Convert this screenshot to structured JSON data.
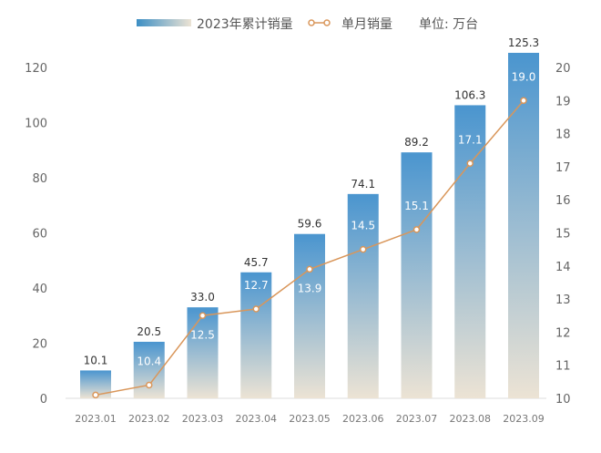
{
  "chart_data": {
    "type": "bar+line",
    "legend": {
      "bar_label": "2023年累计销量",
      "line_label": "单月销量",
      "unit_label": "单位: 万台",
      "placement": "top"
    },
    "categories": [
      "2023.01",
      "2023.02",
      "2023.03",
      "2023.04",
      "2023.05",
      "2023.06",
      "2023.07",
      "2023.08",
      "2023.09"
    ],
    "series": [
      {
        "name": "2023年累计销量",
        "type": "bar",
        "axis": "left",
        "values": [
          10.1,
          20.5,
          33.0,
          45.7,
          59.6,
          74.1,
          89.2,
          106.3,
          125.3
        ],
        "labels": [
          "10.1",
          "20.5",
          "33.0",
          "45.7",
          "59.6",
          "74.1",
          "89.2",
          "106.3",
          "125.3"
        ]
      },
      {
        "name": "单月销量",
        "type": "line",
        "axis": "right",
        "values": [
          10.1,
          10.4,
          12.5,
          12.7,
          13.9,
          14.5,
          15.1,
          17.1,
          19.0
        ],
        "labels": [
          "",
          "10.4",
          "12.5",
          "12.7",
          "13.9",
          "14.5",
          "15.1",
          "17.1",
          "19.0"
        ]
      }
    ],
    "left_axis": {
      "ylim": [
        0,
        120
      ],
      "ticks": [
        "0",
        "20",
        "40",
        "60",
        "80",
        "100",
        "120"
      ]
    },
    "right_axis": {
      "ylim": [
        10,
        20
      ],
      "ticks": [
        "10",
        "11",
        "12",
        "13",
        "14",
        "15",
        "16",
        "17",
        "18",
        "19",
        "20"
      ]
    },
    "grid": false,
    "colors": {
      "bar_top": "#4a95cf",
      "bar_bottom": "#ece3d4",
      "line": "#d9965a",
      "marker_fill": "#ffffff",
      "axis_text": "#666666",
      "bar_label": "#333333",
      "line_label": "#ffffff"
    }
  }
}
